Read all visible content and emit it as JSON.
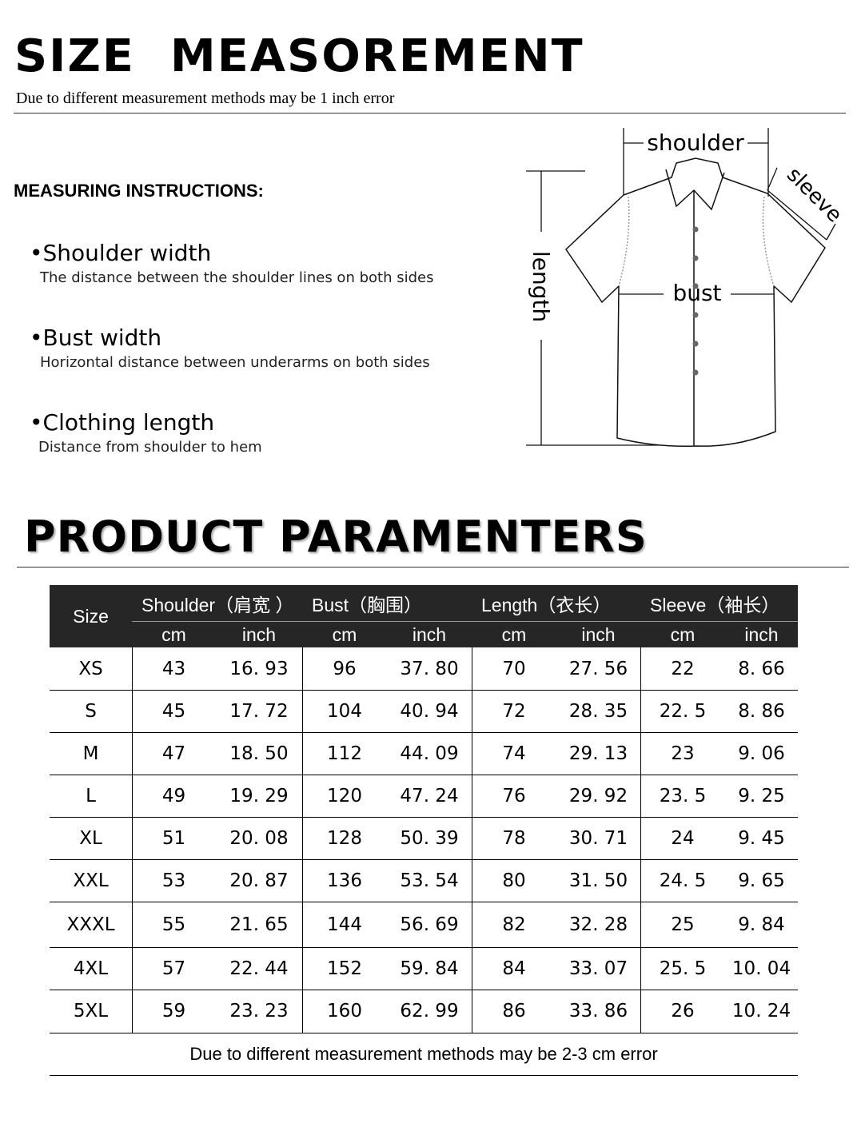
{
  "header": {
    "title": "SIZE  MEASOREMENT",
    "subtitle": "Due to different measurement methods may be 1 inch error"
  },
  "instructions": {
    "heading": "MEASURING INSTRUCTIONS:",
    "items": [
      {
        "title": "•Shoulder width",
        "desc": "The distance between the shoulder lines on both sides"
      },
      {
        "title": "•Bust width",
        "desc": "Horizontal distance between underarms on both sides"
      },
      {
        "title": "•Clothing length",
        "desc": "Distance from shoulder to hem"
      }
    ]
  },
  "diagram": {
    "shoulder": "shoulder",
    "sleeve": "sleeve",
    "length": "length",
    "bust": "bust"
  },
  "params": {
    "title": "PRODUCT PARAMENTERS",
    "size_label": "Size",
    "groups": [
      "Shoulder（肩宽 ）",
      "Bust（胸围）",
      "Length（衣长）",
      "Sleeve（袖长）"
    ],
    "units": [
      "cm",
      "inch",
      "cm",
      "inch",
      "cm",
      "inch",
      "cm",
      "inch"
    ],
    "rows": [
      [
        "XS",
        "43",
        "16. 93",
        "96",
        "37. 80",
        "70",
        "27. 56",
        "22",
        "8. 66"
      ],
      [
        "S",
        "45",
        "17. 72",
        "104",
        "40. 94",
        "72",
        "28. 35",
        "22. 5",
        "8. 86"
      ],
      [
        "M",
        "47",
        "18. 50",
        "112",
        "44. 09",
        "74",
        "29. 13",
        "23",
        "9. 06"
      ],
      [
        "L",
        "49",
        "19. 29",
        "120",
        "47. 24",
        "76",
        "29. 92",
        "23. 5",
        "9. 25"
      ],
      [
        "XL",
        "51",
        "20. 08",
        "128",
        "50. 39",
        "78",
        "30. 71",
        "24",
        "9. 45"
      ],
      [
        "XXL",
        "53",
        "20. 87",
        "136",
        "53. 54",
        "80",
        "31. 50",
        "24. 5",
        "9. 65"
      ],
      [
        "XXXL",
        "55",
        "21. 65",
        "144",
        "56. 69",
        "82",
        "32. 28",
        "25",
        "9. 84"
      ],
      [
        "4XL",
        "57",
        "22. 44",
        "152",
        "59. 84",
        "84",
        "33. 07",
        "25. 5",
        "10. 04"
      ],
      [
        "5XL",
        "59",
        "23. 23",
        "160",
        "62. 99",
        "86",
        "33. 86",
        "26",
        "10. 24"
      ]
    ],
    "footnote": "Due to different measurement methods may be 2-3 cm error"
  }
}
